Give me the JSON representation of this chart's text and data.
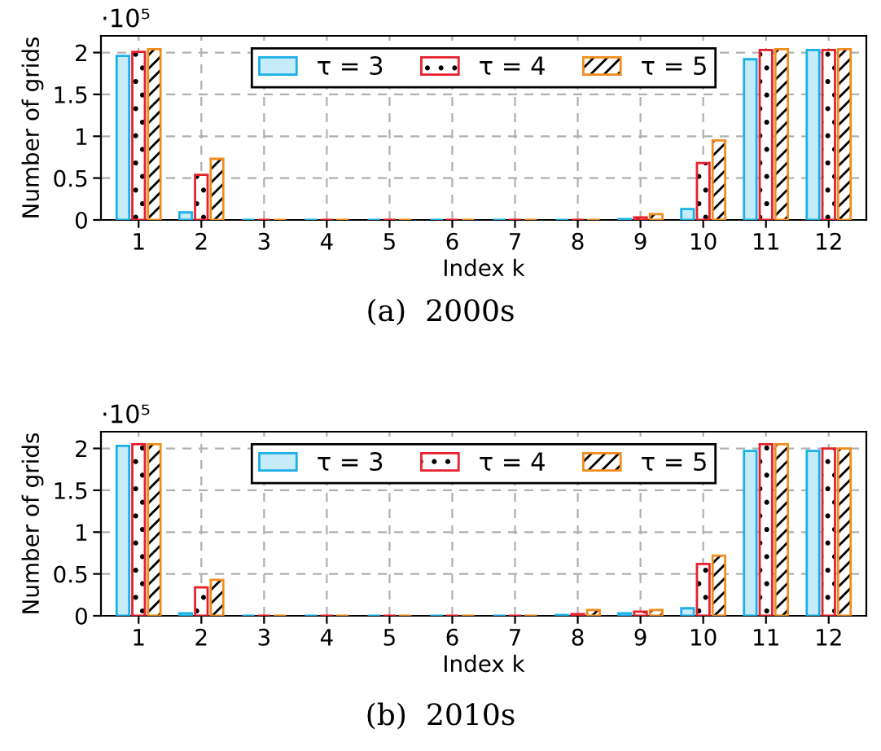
{
  "chart_data": [
    {
      "type": "bar",
      "title": "(a)  2000s",
      "xlabel": "Index k",
      "ylabel": "Number of grids",
      "annotations": [
        "·10⁵"
      ],
      "categories": [
        "1",
        "2",
        "3",
        "4",
        "5",
        "6",
        "7",
        "8",
        "9",
        "10",
        "11",
        "12"
      ],
      "series": [
        {
          "name": "τ = 3",
          "color": "#1ab0e8",
          "values": [
            1.96,
            0.09,
            0,
            0,
            0,
            0,
            0,
            0,
            0.01,
            0.13,
            1.92,
            2.03
          ]
        },
        {
          "name": "τ = 4",
          "color": "#e8202a",
          "values": [
            2.01,
            0.54,
            0,
            0,
            0,
            0,
            0,
            0,
            0.03,
            0.68,
            2.03,
            2.03
          ]
        },
        {
          "name": "τ = 5",
          "color": "#f28c1c",
          "values": [
            2.04,
            0.73,
            0,
            0,
            0,
            0,
            0,
            0,
            0.07,
            0.95,
            2.04,
            2.04
          ]
        }
      ],
      "ylim": [
        0,
        2.2
      ],
      "yticks": [
        0,
        0.5,
        1,
        1.5,
        2
      ],
      "grid": true,
      "legend": "top"
    },
    {
      "type": "bar",
      "title": "(b)  2010s",
      "xlabel": "Index k",
      "ylabel": "Number of grids",
      "annotations": [
        "·10⁵"
      ],
      "categories": [
        "1",
        "2",
        "3",
        "4",
        "5",
        "6",
        "7",
        "8",
        "9",
        "10",
        "11",
        "12"
      ],
      "series": [
        {
          "name": "τ = 3",
          "color": "#1ab0e8",
          "values": [
            2.03,
            0.03,
            0,
            0,
            0,
            0,
            0,
            0.01,
            0.03,
            0.09,
            1.97,
            1.97
          ]
        },
        {
          "name": "τ = 4",
          "color": "#e8202a",
          "values": [
            2.05,
            0.34,
            0,
            0,
            0,
            0,
            0,
            0.02,
            0.05,
            0.62,
            2.05,
            2.0
          ]
        },
        {
          "name": "τ = 5",
          "color": "#f28c1c",
          "values": [
            2.05,
            0.43,
            0,
            0,
            0,
            0,
            0,
            0.07,
            0.07,
            0.72,
            2.05,
            2.0
          ]
        }
      ],
      "ylim": [
        0,
        2.2
      ],
      "yticks": [
        0,
        0.5,
        1,
        1.5,
        2
      ],
      "grid": true,
      "legend": "top"
    }
  ]
}
